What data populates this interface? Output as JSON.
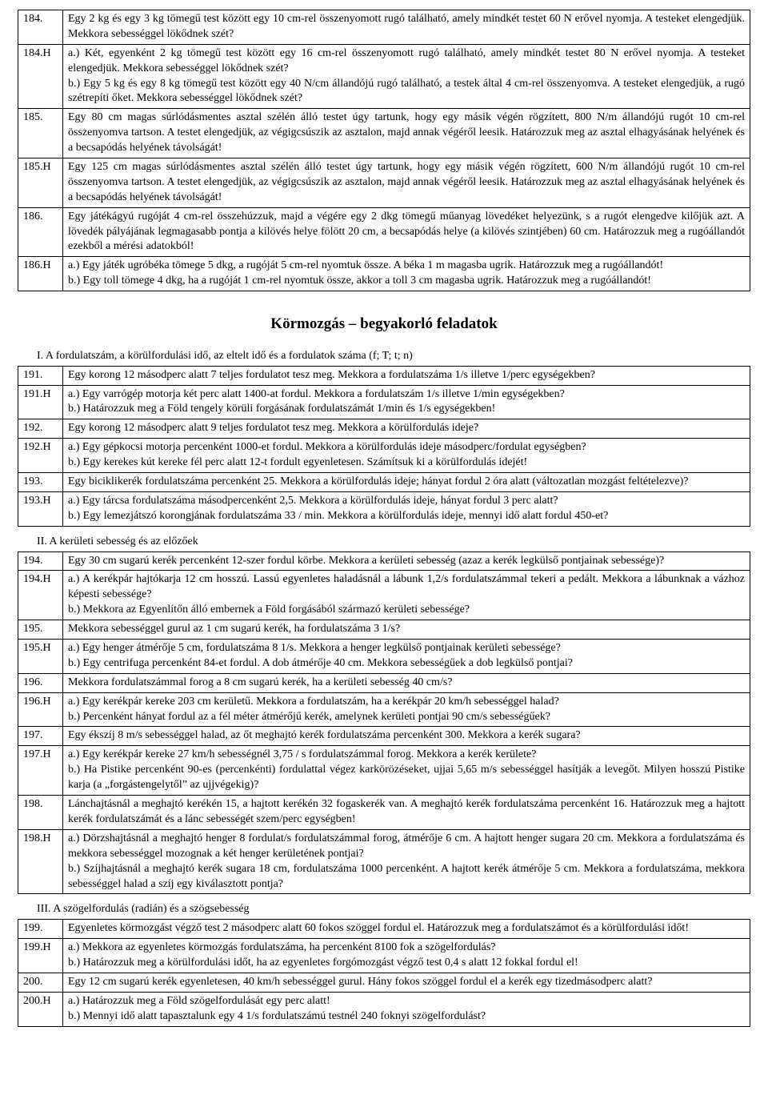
{
  "table1": {
    "rows": [
      {
        "num": "184.",
        "text": "Egy 2 kg és egy 3 kg tömegű test között egy 10 cm-rel összenyomott rugó található, amely mindkét testet 60 N erővel nyomja. A testeket elengedjük. Mekkora sebességgel lökődnek szét?"
      },
      {
        "num": "184.H",
        "text": "a.) Két, egyenként 2 kg tömegű test között egy 16 cm-rel összenyomott rugó található, amely mindkét testet 80 N erővel nyomja. A testeket elengedjük. Mekkora sebességgel lökődnek szét?\nb.) Egy 5 kg és egy 8 kg tömegű test között egy 40 N/cm állandójú rugó található, a testek által 4 cm-rel összenyomva. A testeket elengedjük, a rugó szétrepíti őket. Mekkora sebességgel lökődnek szét?"
      },
      {
        "num": "185.",
        "text": "Egy 80 cm magas súrlódásmentes asztal szélén álló testet úgy tartunk, hogy egy másik végén rögzített, 800 N/m állandójú rugót 10 cm-rel összenyomva tartson. A testet elengedjük, az végigcsúszik az asztalon, majd annak végéről leesik. Határozzuk meg az asztal elhagyásának helyének és a becsapódás helyének távolságát!"
      },
      {
        "num": "185.H",
        "text": "Egy 125 cm magas súrlódásmentes asztal szélén álló testet úgy tartunk, hogy egy másik végén rögzített, 600 N/m állandójú rugót 10 cm-rel összenyomva tartson. A testet elengedjük, az végigcsúszik az asztalon, majd annak végéről leesik. Határozzuk meg az asztal elhagyásának helyének és a becsapódás helyének távolságát!"
      },
      {
        "num": "186.",
        "text": "Egy játékágyú rugóját 4 cm-rel összehúzzuk, majd a végére egy 2 dkg tömegű műanyag lövedéket helyezünk, s a rugót elengedve kilőjük azt. A lövedék pályájának legmagasabb pontja a kilövés helye fölött 20 cm, a becsapódás helye (a kilövés szintjében) 60 cm. Határozzuk meg a rugóállandót ezekből a mérési adatokból!"
      },
      {
        "num": "186.H",
        "text": "a.) Egy játék ugróbéka tömege 5 dkg, a rugóját 5 cm-rel nyomtuk össze. A béka 1 m magasba ugrik. Határozzuk meg a rugóállandót!\nb.) Egy toll tömege 4 dkg, ha a rugóját 1 cm-rel nyomtuk össze, akkor a toll 3 cm magasba ugrik. Határozzuk meg a rugóállandót!"
      }
    ]
  },
  "heading": "Körmozgás – begyakorló feladatok",
  "sectionI": {
    "label": "I. A fordulatszám, a körülfordulási idő, az eltelt idő és a fordulatok száma (f; T; t; n)",
    "rows": [
      {
        "num": "191.",
        "text": "Egy korong 12 másodperc alatt 7 teljes fordulatot tesz meg. Mekkora a fordulatszáma 1/s illetve 1/perc egységekben?"
      },
      {
        "num": "191.H",
        "text": "a.) Egy varrógép motorja két perc alatt 1400-at fordul. Mekkora a fordulatszám 1/s illetve 1/min egységekben?\nb.) Határozzuk meg a Föld tengely körüli forgásának fordulatszámát 1/min és 1/s egységekben!"
      },
      {
        "num": "192.",
        "text": "Egy korong 12 másodperc alatt 9 teljes fordulatot tesz meg. Mekkora a körülfordulás ideje?"
      },
      {
        "num": "192.H",
        "text": "a.) Egy gépkocsi motorja percenként 1000-et fordul. Mekkora a körülfordulás ideje másodperc/fordulat egységben?\nb.) Egy kerekes kút kereke fél perc alatt 12-t fordult egyenletesen. Számítsuk ki a körülfordulás idejét!"
      },
      {
        "num": "193.",
        "text": "Egy biciklikerék fordulatszáma percenként 25. Mekkora a körülfordulás ideje; hányat fordul 2 óra alatt (változatlan mozgást feltételezve)?"
      },
      {
        "num": "193.H",
        "text": "a.) Egy tárcsa fordulatszáma másodpercenként 2,5. Mekkora a körülfordulás ideje, hányat fordul 3 perc alatt?\nb.) Egy lemezjátszó korongjának fordulatszáma 33 / min. Mekkora a körülfordulás ideje, mennyi idő alatt fordul 450-et?"
      }
    ]
  },
  "sectionII": {
    "label": "II. A kerületi sebesség és az előzőek",
    "rows": [
      {
        "num": "194.",
        "text": "Egy 30 cm sugarú kerék percenként 12-szer fordul körbe. Mekkora a kerületi sebesség (azaz a kerék legkülső pontjainak sebessége)?"
      },
      {
        "num": "194.H",
        "text": "a.) A kerékpár hajtókarja 12 cm hosszú. Lassú egyenletes haladásnál a lábunk 1,2/s fordulatszámmal tekeri a pedált. Mekkora a lábunknak a vázhoz képesti sebessége?\nb.) Mekkora az Egyenlítőn álló embernek a Föld forgásából származó kerületi sebessége?"
      },
      {
        "num": "195.",
        "text": "Mekkora sebességgel gurul az 1 cm sugarú kerék, ha fordulatszáma 3 1/s?"
      },
      {
        "num": "195.H",
        "text": "a.) Egy henger átmérője 5 cm, fordulatszáma 8 1/s. Mekkora a henger legkülső pontjainak kerületi sebessége?\nb.) Egy centrifuga percenként 84-et fordul. A dob átmérője 40 cm. Mekkora sebességűek a dob legkülső pontjai?"
      },
      {
        "num": "196.",
        "text": "Mekkora fordulatszámmal forog a 8 cm sugarú kerék, ha a kerületi sebesség 40 cm/s?"
      },
      {
        "num": "196.H",
        "text": "a.) Egy kerékpár kereke 203 cm kerületű. Mekkora a fordulatszám, ha a kerékpár 20 km/h sebességgel halad?\nb.) Percenként hányat fordul az a fél méter átmérőjű kerék, amelynek kerületi pontjai 90 cm/s sebességűek?"
      },
      {
        "num": "197.",
        "text": "Egy ékszíj 8 m/s sebességgel halad, az őt meghajtó kerék fordulatszáma percenként 300. Mekkora a kerék sugara?"
      },
      {
        "num": "197.H",
        "text": "a.) Egy kerékpár kereke 27 km/h sebességnél 3,75 / s fordulatszámmal forog. Mekkora a kerék kerülete?\nb.) Ha Pistike percenként 90-es (percenkénti) fordulattal végez karkörözéseket, ujjai 5,65 m/s sebességgel hasítják a levegőt. Milyen hosszú Pistike karja (a „forgástengelytől” az ujjvégekig)?"
      },
      {
        "num": "198.",
        "text": "Lánchajtásnál a meghajtó kerékén 15, a hajtott kerékén 32 fogaskerék van. A meghajtó kerék fordulatszáma percenként 16. Határozzuk meg a hajtott kerék fordulatszámát és a lánc sebességét szem/perc egységben!"
      },
      {
        "num": "198.H",
        "text": "a.) Dörzshajtásnál a meghajtó henger 8 fordulat/s fordulatszámmal forog, átmérője 6 cm. A hajtott henger sugara 20 cm. Mekkora a fordulatszáma és mekkora sebességgel mozognak a két henger kerületének pontjai?\nb.) Szíjhajtásnál a meghajtó kerék sugara 18 cm, fordulatszáma 1000 percenként. A hajtott kerék átmérője 5 cm. Mekkora a fordulatszáma, mekkora sebességgel halad a szíj egy kiválasztott pontja?"
      }
    ]
  },
  "sectionIII": {
    "label": "III. A szögelfordulás (radián) és a szögsebesség",
    "rows": [
      {
        "num": "199.",
        "text": "Egyenletes körmozgást végző test 2 másodperc alatt 60 fokos szöggel fordul el. Határozzuk meg a fordulatszámot és a körülfordulási időt!"
      },
      {
        "num": "199.H",
        "text": "a.) Mekkora az egyenletes körmozgás fordulatszáma, ha percenként 8100 fok a szögelfordulás?\nb.) Határozzuk meg a körülfordulási időt, ha az egyenletes forgómozgást végző test 0,4 s alatt 12 fokkal fordul el!"
      },
      {
        "num": "200.",
        "text": "Egy 12 cm sugarú kerék egyenletesen, 40 km/h sebességgel gurul. Hány fokos szöggel fordul el a kerék egy tizedmásodperc alatt?"
      },
      {
        "num": "200.H",
        "text": "a.) Határozzuk meg a Föld szögelfordulását egy perc alatt!\nb.) Mennyi idő alatt tapasztalunk egy 4 1/s fordulatszámú testnél 240 foknyi szögelfordulást?"
      }
    ]
  }
}
